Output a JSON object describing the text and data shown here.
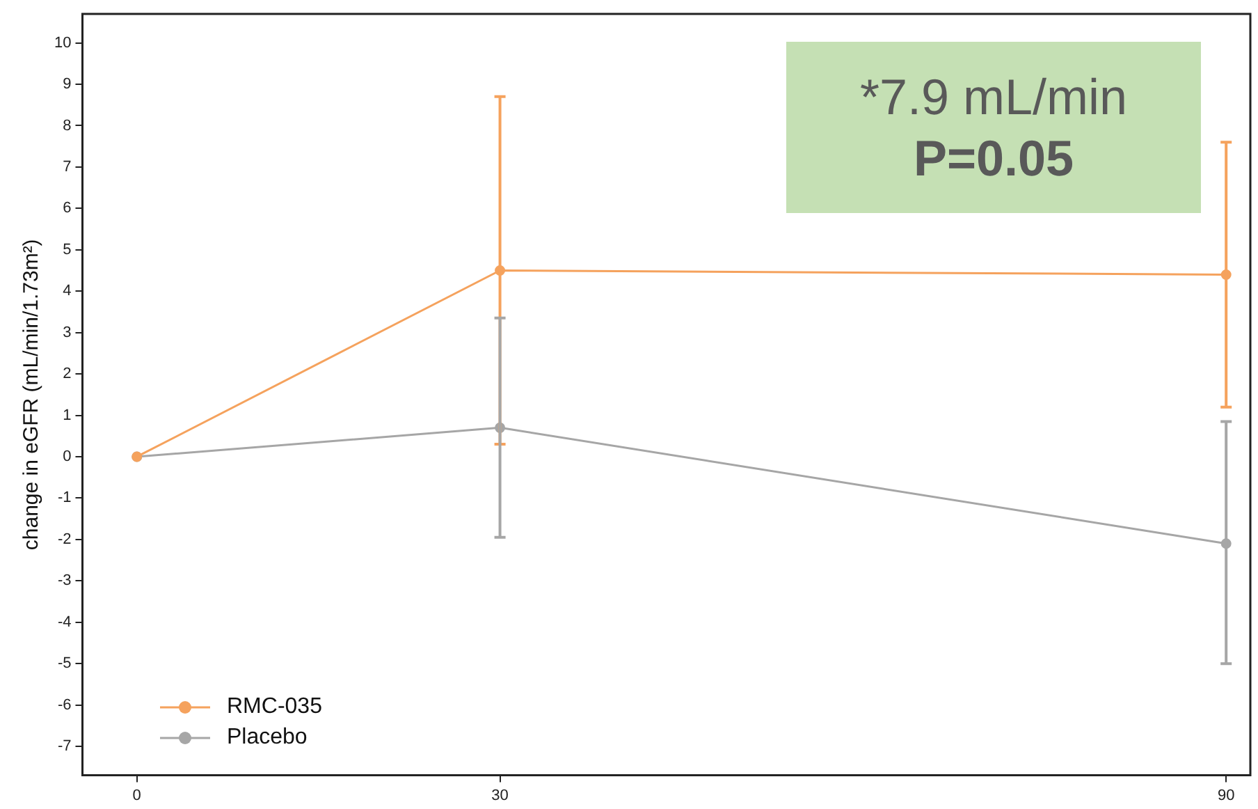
{
  "chart_data": {
    "type": "line",
    "ylabel": "change in eGFR (mL/min/1.73m²)",
    "x": [
      0,
      30,
      90
    ],
    "xlim": [
      -4.5,
      92
    ],
    "xticks": [
      0,
      30,
      90
    ],
    "ylim": [
      -7.7,
      10.7
    ],
    "yticks": [
      -7,
      -6,
      -5,
      -4,
      -3,
      -2,
      -1,
      0,
      1,
      2,
      3,
      4,
      5,
      6,
      7,
      8,
      9,
      10
    ],
    "series": [
      {
        "name": "RMC-035",
        "color": "#f5a25d",
        "values": [
          0,
          4.5,
          4.4
        ],
        "errors": [
          null,
          [
            0.3,
            8.7
          ],
          [
            1.2,
            7.6
          ]
        ]
      },
      {
        "name": "Placebo",
        "color": "#a6a6a6",
        "values": [
          0,
          0.7,
          -2.1
        ],
        "errors": [
          null,
          [
            -1.95,
            3.35
          ],
          [
            -5.0,
            0.85
          ]
        ]
      }
    ],
    "annotations": [
      "*7.9 mL/min",
      "P=0.05"
    ],
    "legend": "bottom left",
    "marker": "circle",
    "line_style": "solid",
    "grid": false
  }
}
